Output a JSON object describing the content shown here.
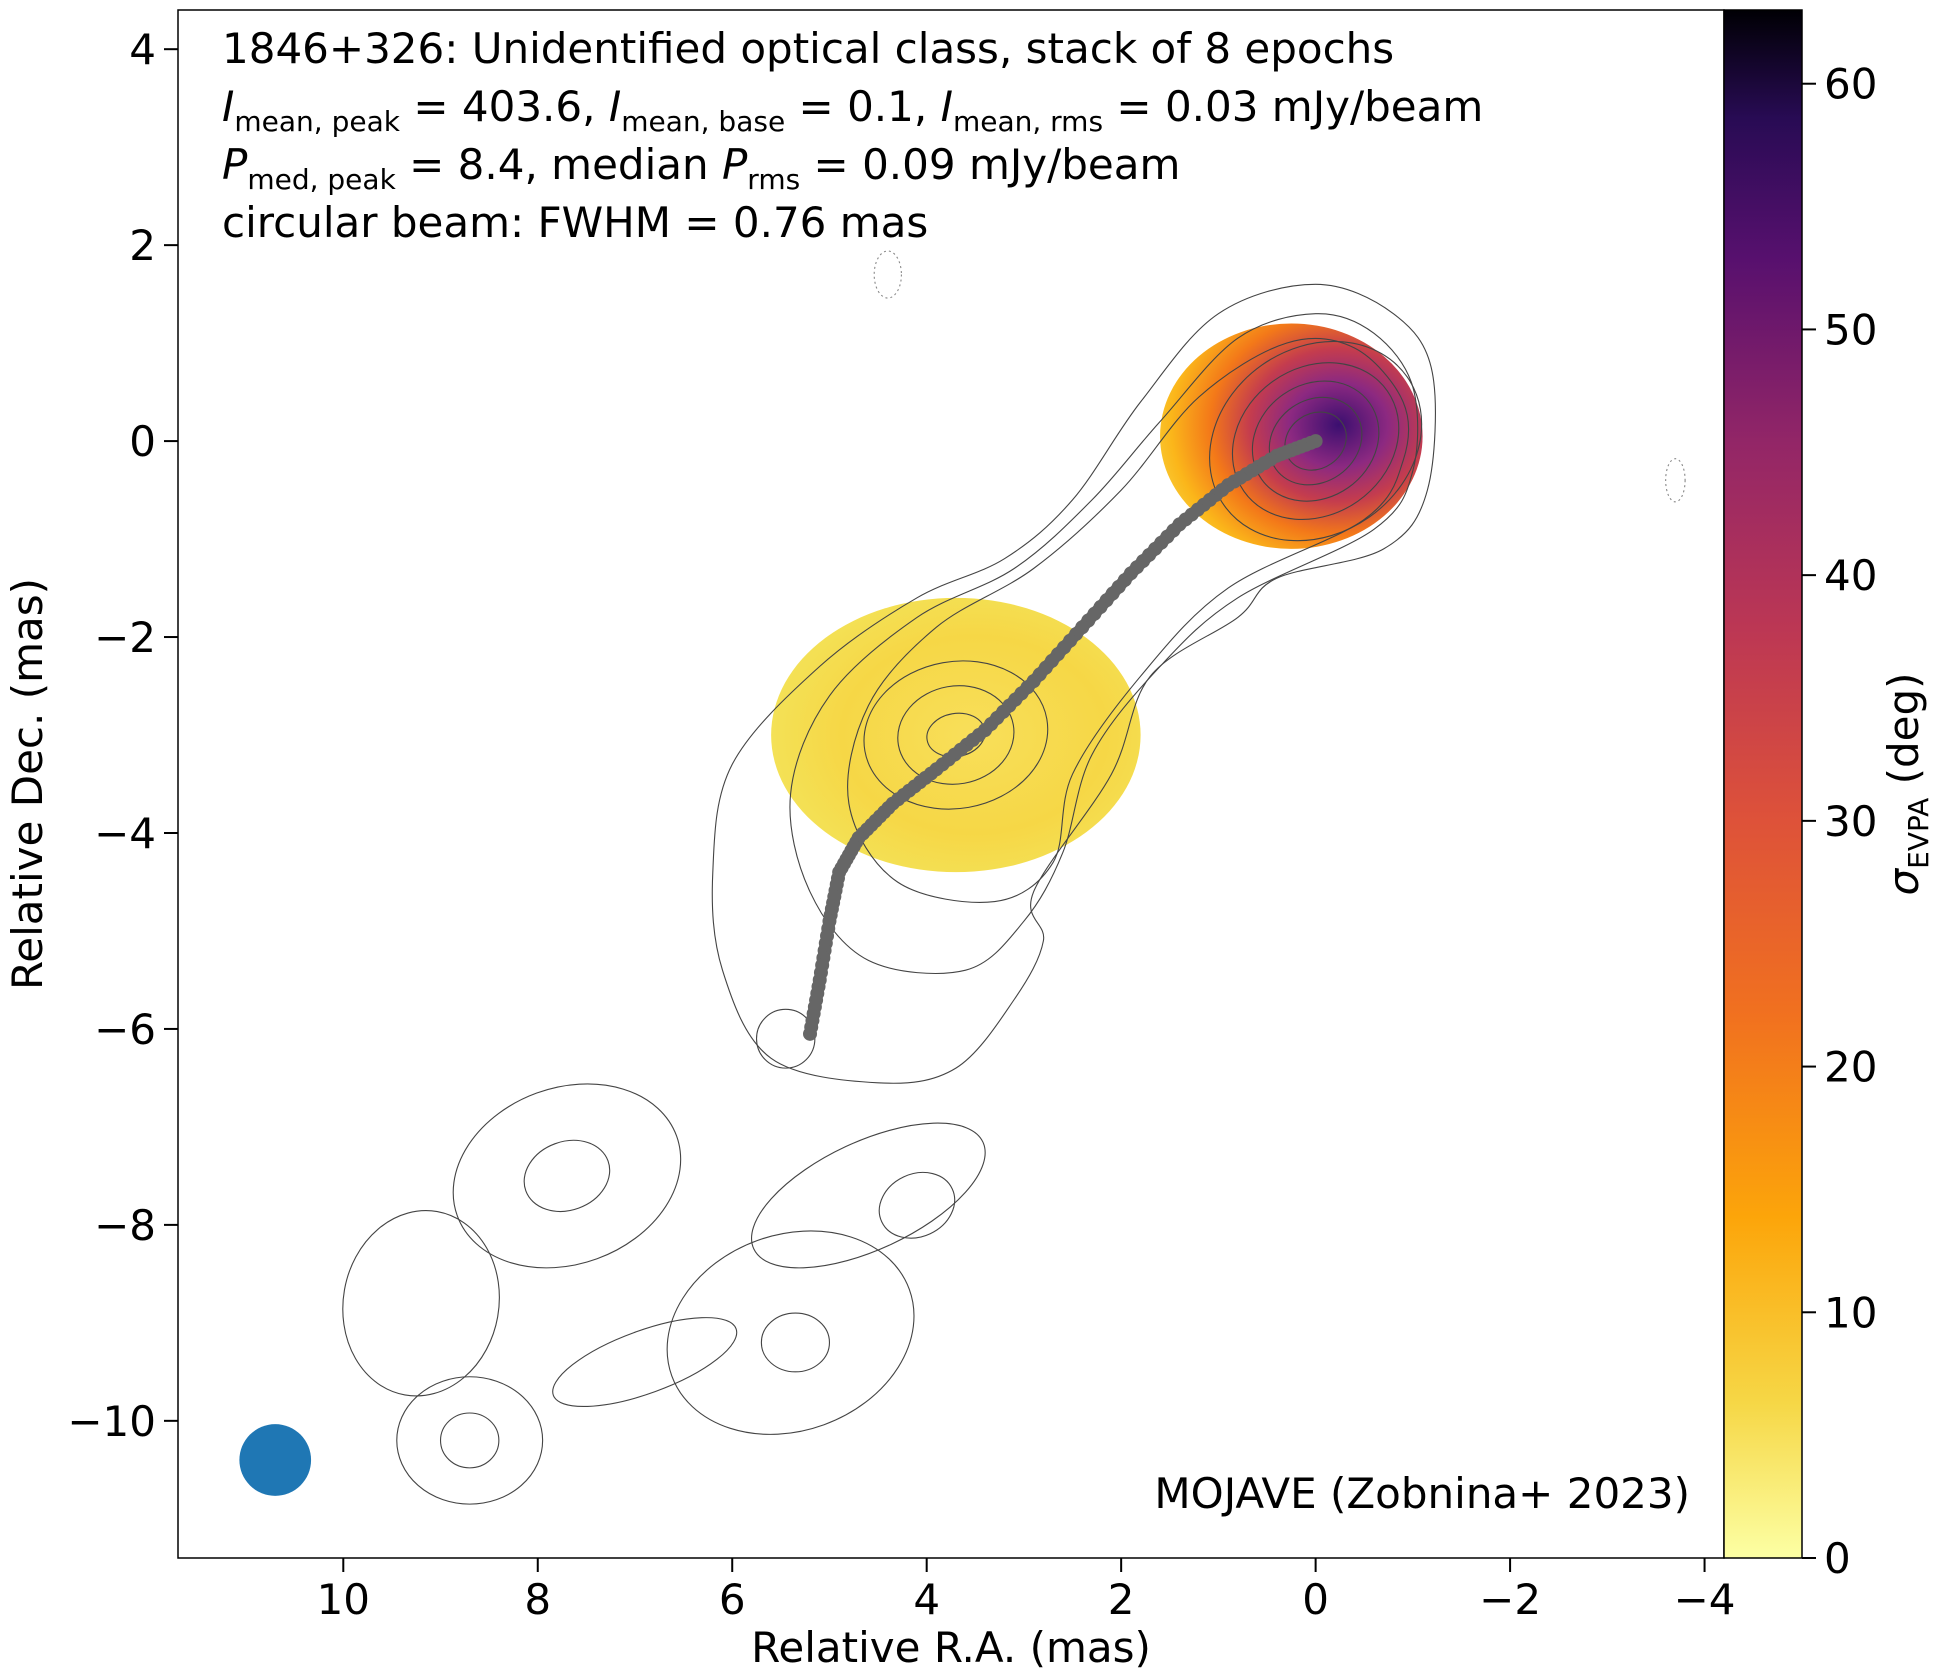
{
  "chart_data": {
    "type": "heatmap",
    "title_lines": [
      "1846+326: Unidentified optical class, stack of 8 epochs",
      "I_mean,peak = 403.6, I_mean,base = 0.1, I_mean,rms = 0.03 mJy/beam",
      "P_med,peak = 8.4, median P_rms = 0.09 mJy/beam",
      "circular beam: FWHM = 0.76 mas"
    ],
    "source": "1846+326",
    "optical_class": "Unidentified optical class",
    "epochs": 8,
    "I_mean_peak": 403.6,
    "I_mean_base": 0.1,
    "I_mean_rms": 0.03,
    "P_med_peak": 8.4,
    "median_P_rms": 0.09,
    "flux_unit": "mJy/beam",
    "beam_fwhm_mas": 0.76,
    "beam_center": [
      10.7,
      -10.4
    ],
    "credit": "MOJAVE (Zobnina+ 2023)",
    "xlabel": "Relative R.A. (mas)",
    "ylabel": "Relative Dec. (mas)",
    "xlim": [
      11.7,
      -4.2
    ],
    "ylim": [
      -11.4,
      4.4
    ],
    "x_ticks": [
      10,
      8,
      6,
      4,
      2,
      0,
      -2,
      -4
    ],
    "y_ticks": [
      4,
      2,
      0,
      -2,
      -4,
      -6,
      -8,
      -10
    ],
    "colorbar": {
      "label": "σ_EVPA (deg)",
      "colormap": "inferno_r",
      "range": [
        0,
        63
      ],
      "ticks": [
        0,
        10,
        20,
        30,
        40,
        50,
        60
      ]
    },
    "sigma_evpa_blobs": [
      {
        "name": "core",
        "center": [
          0.25,
          0.05
        ],
        "radius": [
          1.35,
          1.15
        ],
        "sigma_min": 3,
        "sigma_max": 63
      },
      {
        "name": "jet-component",
        "center": [
          3.7,
          -3.0
        ],
        "radius": [
          1.9,
          1.4
        ],
        "sigma_min": 2,
        "sigma_max": 9
      }
    ],
    "ridge_line": {
      "color": "#666666",
      "points": [
        [
          0.0,
          0.0
        ],
        [
          0.4,
          -0.15
        ],
        [
          0.9,
          -0.45
        ],
        [
          1.4,
          -0.85
        ],
        [
          1.9,
          -1.35
        ],
        [
          2.4,
          -1.9
        ],
        [
          2.9,
          -2.45
        ],
        [
          3.4,
          -2.95
        ],
        [
          3.9,
          -3.35
        ],
        [
          4.35,
          -3.7
        ],
        [
          4.7,
          -4.05
        ],
        [
          4.9,
          -4.4
        ],
        [
          5.0,
          -4.9
        ],
        [
          5.1,
          -5.5
        ],
        [
          5.2,
          -6.05
        ]
      ]
    },
    "contour_levels": 10,
    "contours": [
      {
        "center": [
          0.0,
          0.0
        ],
        "radius": [
          1.15,
          0.95
        ],
        "rotation": -35
      },
      {
        "center": [
          0.0,
          0.0
        ],
        "radius": [
          0.9,
          0.75
        ],
        "rotation": -35
      },
      {
        "center": [
          0.0,
          0.0
        ],
        "radius": [
          0.68,
          0.58
        ],
        "rotation": -35
      },
      {
        "center": [
          0.0,
          0.0
        ],
        "radius": [
          0.5,
          0.42
        ],
        "rotation": -35
      },
      {
        "center": [
          0.0,
          0.0
        ],
        "radius": [
          0.33,
          0.28
        ],
        "rotation": -35
      },
      {
        "center": [
          3.7,
          -3.0
        ],
        "radius": [
          0.95,
          0.75
        ],
        "rotation": -10
      },
      {
        "center": [
          3.7,
          -3.0
        ],
        "radius": [
          0.6,
          0.5
        ],
        "rotation": -10
      },
      {
        "center": [
          3.7,
          -3.0
        ],
        "radius": [
          0.3,
          0.22
        ],
        "rotation": -10
      },
      {
        "center": [
          5.45,
          -6.1
        ],
        "radius": [
          0.3,
          0.3
        ],
        "rotation": 0
      },
      {
        "center": [
          7.7,
          -7.5
        ],
        "radius": [
          1.2,
          0.9
        ],
        "rotation": -20
      },
      {
        "center": [
          7.7,
          -7.5
        ],
        "radius": [
          0.45,
          0.35
        ],
        "rotation": -20
      },
      {
        "center": [
          4.6,
          -7.7
        ],
        "radius": [
          1.3,
          0.55
        ],
        "rotation": -25
      },
      {
        "center": [
          4.1,
          -7.8
        ],
        "radius": [
          0.4,
          0.32
        ],
        "rotation": -25
      },
      {
        "center": [
          9.2,
          -8.8
        ],
        "radius": [
          0.8,
          0.95
        ],
        "rotation": 10
      },
      {
        "center": [
          5.4,
          -9.1
        ],
        "radius": [
          1.3,
          1.0
        ],
        "rotation": -20
      },
      {
        "center": [
          5.35,
          -9.2
        ],
        "radius": [
          0.35,
          0.3
        ],
        "rotation": 0
      },
      {
        "center": [
          6.9,
          -9.4
        ],
        "radius": [
          1.0,
          0.32
        ],
        "rotation": -20
      },
      {
        "center": [
          8.7,
          -10.2
        ],
        "radius": [
          0.75,
          0.65
        ],
        "rotation": 0
      },
      {
        "center": [
          8.7,
          -10.2
        ],
        "radius": [
          0.3,
          0.28
        ],
        "rotation": 0
      },
      {
        "center": [
          4.4,
          1.7
        ],
        "radius": [
          0.14,
          0.24
        ],
        "rotation": 0,
        "dotted": true
      },
      {
        "center": [
          -3.7,
          -0.4
        ],
        "radius": [
          0.1,
          0.22
        ],
        "rotation": 0,
        "dotted": true
      }
    ],
    "contour_envelopes": [
      {
        "kind": "jet-outer",
        "outline": [
          [
            -1.2,
            0.7
          ],
          [
            -0.8,
            1.3
          ],
          [
            0.0,
            1.6
          ],
          [
            1.0,
            1.3
          ],
          [
            1.8,
            0.4
          ],
          [
            2.5,
            -0.6
          ],
          [
            3.2,
            -1.2
          ],
          [
            4.1,
            -1.6
          ],
          [
            5.1,
            -2.3
          ],
          [
            6.0,
            -3.3
          ],
          [
            6.2,
            -4.4
          ],
          [
            6.1,
            -5.4
          ],
          [
            5.6,
            -6.3
          ],
          [
            4.5,
            -6.55
          ],
          [
            3.7,
            -6.4
          ],
          [
            3.1,
            -5.7
          ],
          [
            2.8,
            -5.1
          ],
          [
            2.9,
            -4.6
          ],
          [
            2.1,
            -3.4
          ],
          [
            1.7,
            -2.4
          ],
          [
            0.8,
            -1.8
          ],
          [
            0.4,
            -1.4
          ],
          [
            -0.7,
            -1.1
          ],
          [
            -1.15,
            -0.5
          ]
        ]
      },
      {
        "kind": "jet-mid",
        "outline": [
          [
            -1.0,
            0.55
          ],
          [
            -0.6,
            1.1
          ],
          [
            0.0,
            1.3
          ],
          [
            0.8,
            1.05
          ],
          [
            1.6,
            0.2
          ],
          [
            2.3,
            -0.6
          ],
          [
            3.1,
            -1.3
          ],
          [
            4.1,
            -1.8
          ],
          [
            5.0,
            -2.6
          ],
          [
            5.4,
            -3.6
          ],
          [
            5.2,
            -4.6
          ],
          [
            4.6,
            -5.3
          ],
          [
            3.6,
            -5.4
          ],
          [
            3.0,
            -4.9
          ],
          [
            2.6,
            -4.2
          ],
          [
            2.3,
            -3.2
          ],
          [
            1.6,
            -2.3
          ],
          [
            0.8,
            -1.6
          ],
          [
            -0.6,
            -0.9
          ],
          [
            -1.0,
            -0.3
          ]
        ]
      },
      {
        "kind": "jet-inner",
        "outline": [
          [
            -0.9,
            0.4
          ],
          [
            -0.4,
            0.95
          ],
          [
            0.3,
            1.0
          ],
          [
            1.2,
            0.45
          ],
          [
            2.0,
            -0.5
          ],
          [
            2.9,
            -1.3
          ],
          [
            3.9,
            -1.9
          ],
          [
            4.6,
            -2.7
          ],
          [
            4.8,
            -3.7
          ],
          [
            4.3,
            -4.5
          ],
          [
            3.3,
            -4.7
          ],
          [
            2.7,
            -4.3
          ],
          [
            2.5,
            -3.4
          ],
          [
            1.8,
            -2.4
          ],
          [
            0.9,
            -1.5
          ],
          [
            -0.5,
            -0.8
          ],
          [
            -0.9,
            -0.2
          ]
        ]
      }
    ]
  }
}
